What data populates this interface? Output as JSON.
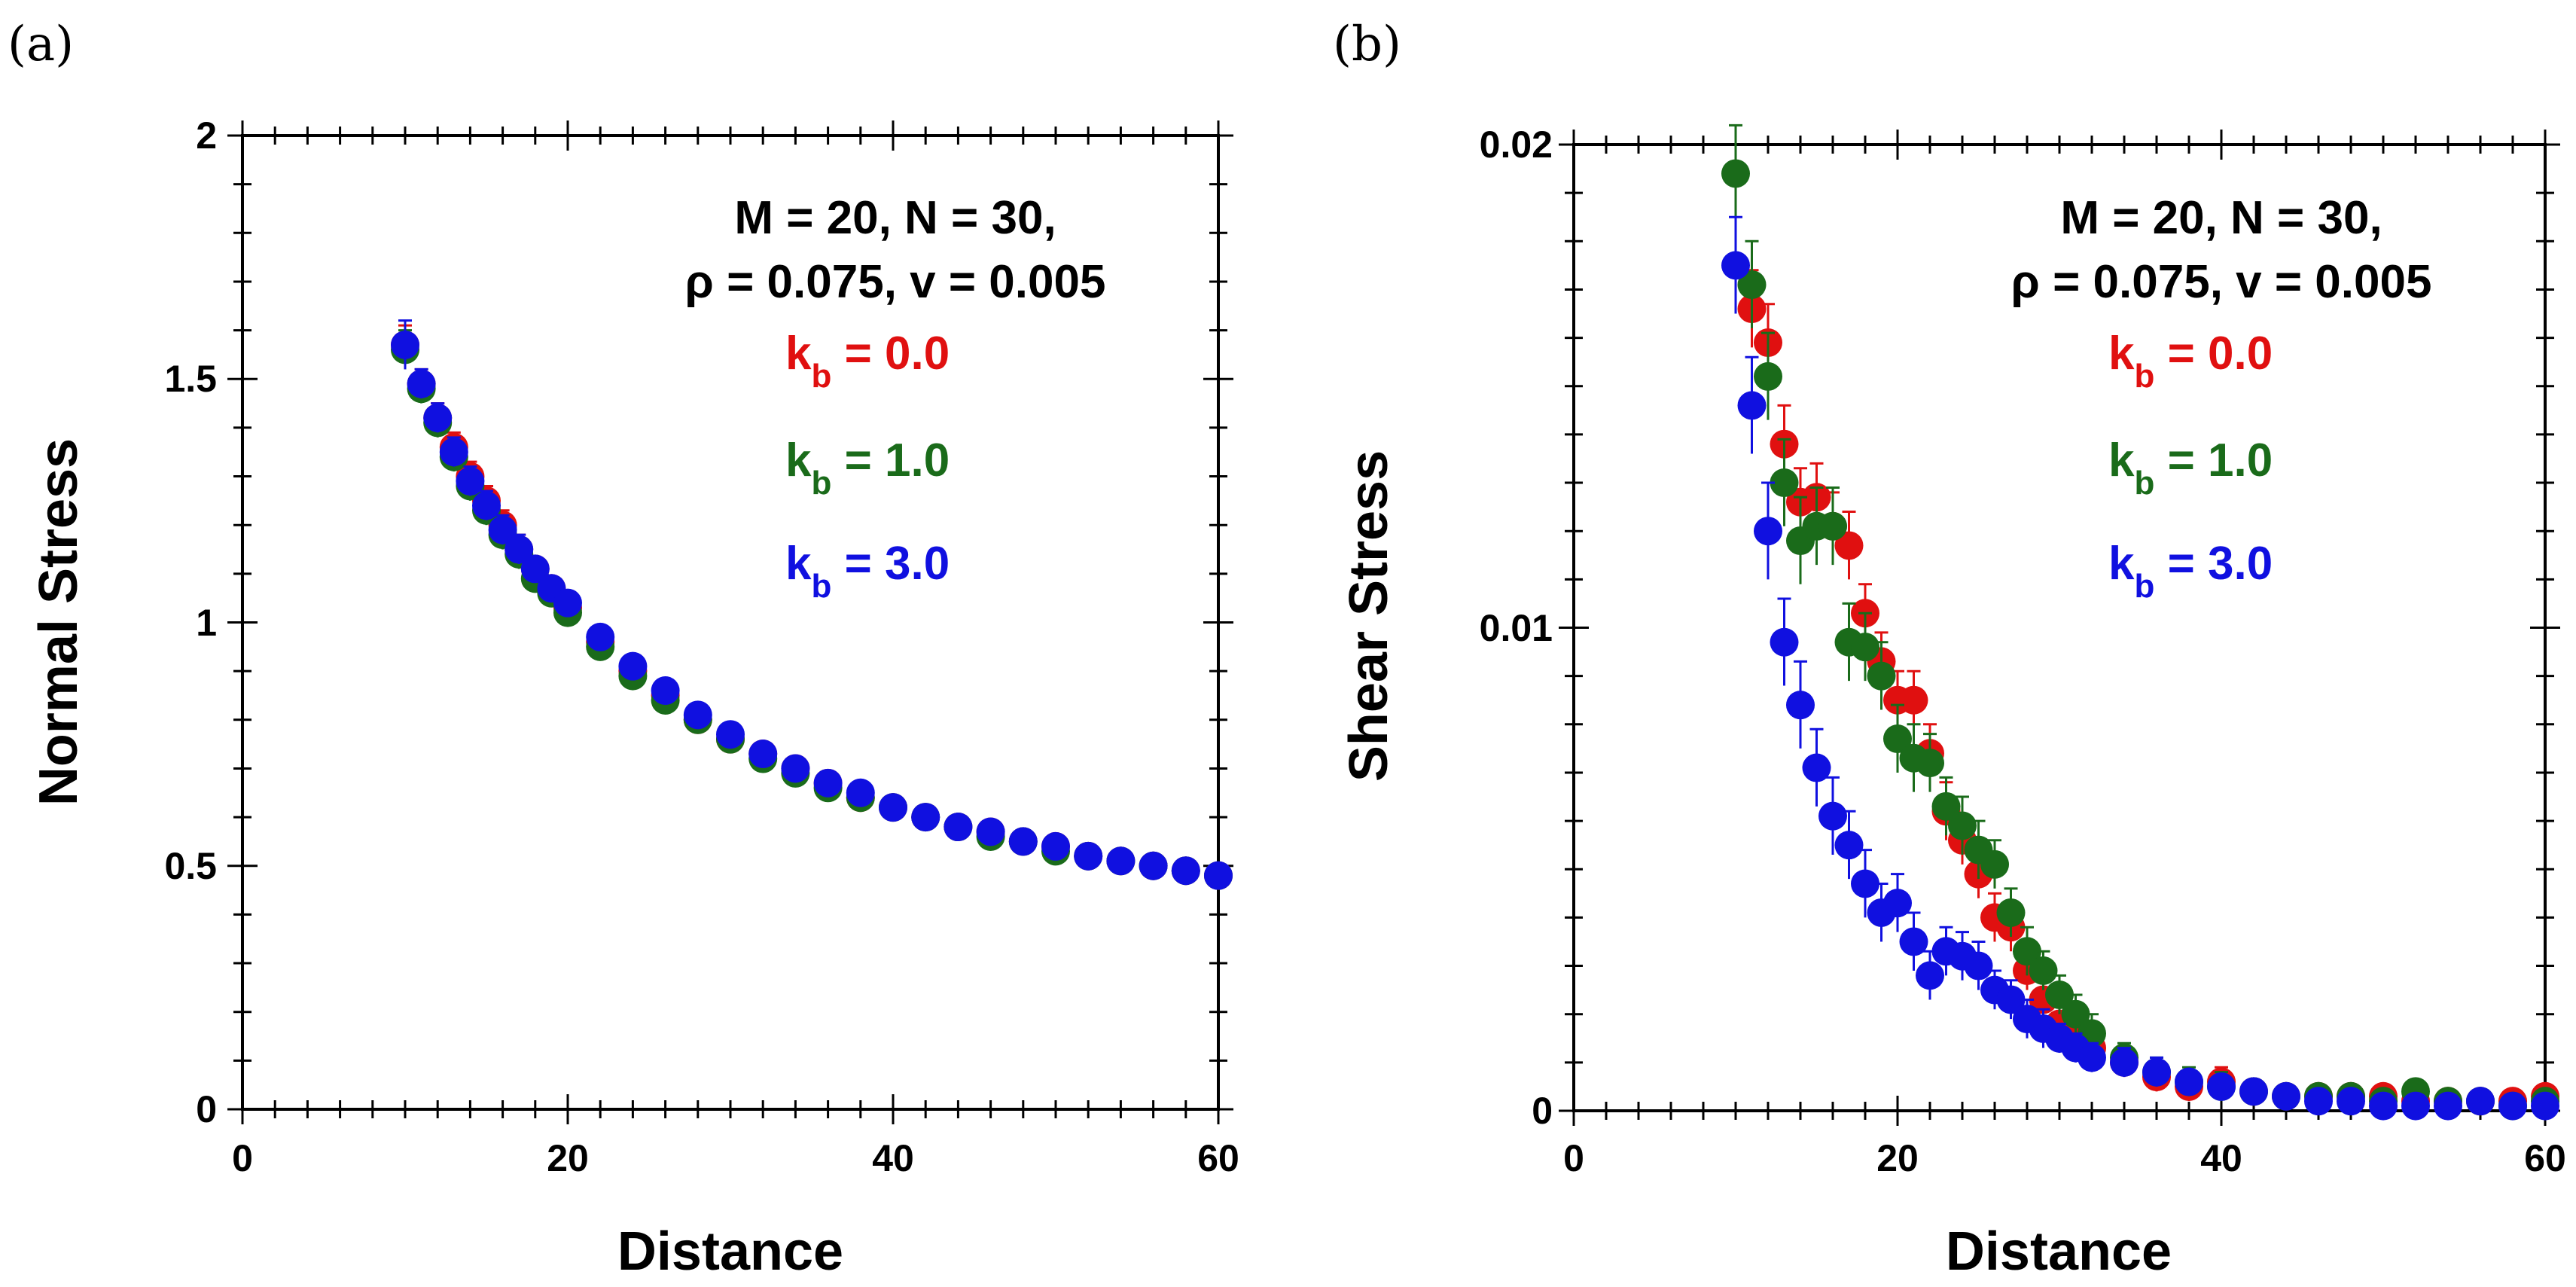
{
  "panels": {
    "a": {
      "label": "(a)",
      "xlabel": "Distance",
      "ylabel": "Normal Stress",
      "xticks": [
        "0",
        "20",
        "40",
        "60"
      ],
      "yticks": [
        "0",
        "0.5",
        "1",
        "1.5",
        "2"
      ],
      "annotation_line1": "M = 20, N = 30,",
      "annotation_line2": "ρ = 0.075, v = 0.005",
      "legend": [
        {
          "k": "k",
          "sub": "b",
          "text": " = 0.0",
          "color": "#e01010"
        },
        {
          "k": "k",
          "sub": "b",
          "text": " = 1.0",
          "color": "#1a6b1a"
        },
        {
          "k": "k",
          "sub": "b",
          "text": " = 3.0",
          "color": "#1010e0"
        }
      ]
    },
    "b": {
      "label": "(b)",
      "xlabel": "Distance",
      "ylabel": "Shear Stress",
      "xticks": [
        "0",
        "20",
        "40",
        "60"
      ],
      "yticks": [
        "0",
        "0.01",
        "0.02"
      ],
      "annotation_line1": "M = 20, N = 30,",
      "annotation_line2": "ρ = 0.075, v = 0.005",
      "legend": [
        {
          "k": "k",
          "sub": "b",
          "text": " = 0.0",
          "color": "#e01010"
        },
        {
          "k": "k",
          "sub": "b",
          "text": " = 1.0",
          "color": "#1a6b1a"
        },
        {
          "k": "k",
          "sub": "b",
          "text": " = 3.0",
          "color": "#1010e0"
        }
      ]
    }
  },
  "chart_data": [
    {
      "type": "scatter",
      "title": "",
      "xlabel": "Distance",
      "ylabel": "Normal Stress",
      "xlim": [
        0,
        60
      ],
      "ylim": [
        0,
        2
      ],
      "error_bars": true,
      "series": [
        {
          "name": "k_b = 0.0",
          "color": "#e01010",
          "x": [
            10,
            11,
            12,
            13,
            14,
            15,
            16,
            17,
            18,
            19,
            20,
            22,
            24,
            26,
            28,
            30,
            32,
            34,
            36,
            38,
            40,
            42,
            44,
            46,
            48,
            50,
            52,
            54,
            56,
            58,
            60
          ],
          "y": [
            1.57,
            1.49,
            1.42,
            1.36,
            1.3,
            1.25,
            1.2,
            1.15,
            1.11,
            1.07,
            1.03,
            0.96,
            0.9,
            0.85,
            0.8,
            0.76,
            0.73,
            0.7,
            0.67,
            0.64,
            0.62,
            0.6,
            0.58,
            0.57,
            0.55,
            0.54,
            0.52,
            0.51,
            0.5,
            0.49,
            0.48
          ],
          "err": [
            0.04,
            0.03,
            0.03,
            0.03,
            0.03,
            0.03,
            0.03,
            0.03,
            0.02,
            0.02,
            0.02,
            0.02,
            0.02,
            0.02,
            0.02,
            0.02,
            0.02,
            0.02,
            0.02,
            0.02,
            0.02,
            0.02,
            0.02,
            0.02,
            0.02,
            0.02,
            0.02,
            0.02,
            0.02,
            0.02,
            0.02
          ]
        },
        {
          "name": "k_b = 1.0",
          "color": "#1a6b1a",
          "x": [
            10,
            11,
            12,
            13,
            14,
            15,
            16,
            17,
            18,
            19,
            20,
            22,
            24,
            26,
            28,
            30,
            32,
            34,
            36,
            38,
            40,
            42,
            44,
            46,
            48,
            50,
            52,
            54,
            56,
            58,
            60
          ],
          "y": [
            1.56,
            1.48,
            1.41,
            1.34,
            1.28,
            1.23,
            1.18,
            1.14,
            1.09,
            1.06,
            1.02,
            0.95,
            0.89,
            0.84,
            0.8,
            0.76,
            0.72,
            0.69,
            0.66,
            0.64,
            0.62,
            0.6,
            0.58,
            0.56,
            0.55,
            0.53,
            0.52,
            0.51,
            0.5,
            0.49,
            0.48
          ],
          "err": [
            0.04,
            0.03,
            0.03,
            0.03,
            0.03,
            0.03,
            0.03,
            0.03,
            0.02,
            0.02,
            0.02,
            0.02,
            0.02,
            0.02,
            0.02,
            0.02,
            0.02,
            0.02,
            0.02,
            0.02,
            0.02,
            0.02,
            0.02,
            0.02,
            0.02,
            0.02,
            0.02,
            0.02,
            0.02,
            0.02,
            0.02
          ]
        },
        {
          "name": "k_b = 3.0",
          "color": "#1010e0",
          "x": [
            10,
            11,
            12,
            13,
            14,
            15,
            16,
            17,
            18,
            19,
            20,
            22,
            24,
            26,
            28,
            30,
            32,
            34,
            36,
            38,
            40,
            42,
            44,
            46,
            48,
            50,
            52,
            54,
            56,
            58,
            60
          ],
          "y": [
            1.57,
            1.49,
            1.42,
            1.35,
            1.29,
            1.24,
            1.19,
            1.15,
            1.11,
            1.07,
            1.04,
            0.97,
            0.91,
            0.86,
            0.81,
            0.77,
            0.73,
            0.7,
            0.67,
            0.65,
            0.62,
            0.6,
            0.58,
            0.57,
            0.55,
            0.54,
            0.52,
            0.51,
            0.5,
            0.49,
            0.48
          ],
          "err": [
            0.05,
            0.03,
            0.03,
            0.03,
            0.03,
            0.03,
            0.03,
            0.03,
            0.02,
            0.02,
            0.02,
            0.02,
            0.02,
            0.02,
            0.02,
            0.02,
            0.02,
            0.02,
            0.02,
            0.02,
            0.02,
            0.02,
            0.02,
            0.02,
            0.02,
            0.02,
            0.02,
            0.02,
            0.02,
            0.02,
            0.02
          ]
        }
      ]
    },
    {
      "type": "scatter",
      "title": "",
      "xlabel": "Distance",
      "ylabel": "Shear Stress",
      "xlim": [
        0,
        60
      ],
      "ylim": [
        0,
        0.02
      ],
      "error_bars": true,
      "series": [
        {
          "name": "k_b = 0.0",
          "color": "#e01010",
          "x": [
            11,
            12,
            13,
            14,
            15,
            16,
            17,
            18,
            19,
            20,
            21,
            22,
            23,
            24,
            25,
            26,
            27,
            28,
            29,
            30,
            31,
            32,
            34,
            36,
            38,
            40,
            42,
            44,
            46,
            48,
            50,
            52,
            54,
            56,
            58,
            60
          ],
          "y": [
            0.0166,
            0.0159,
            0.0138,
            0.0126,
            0.0127,
            0.0121,
            0.0117,
            0.0103,
            0.0093,
            0.0085,
            0.0085,
            0.0074,
            0.0062,
            0.0056,
            0.0049,
            0.004,
            0.0038,
            0.0029,
            0.0023,
            0.0018,
            0.0016,
            0.0013,
            0.001,
            0.0007,
            0.0005,
            0.0006,
            0.0004,
            0.0003,
            0.0003,
            0.0003,
            0.0003,
            0.0002,
            0.0002,
            0.0002,
            0.0002,
            0.0003
          ],
          "err": [
            0.0008,
            0.0008,
            0.0008,
            0.0007,
            0.0007,
            0.0007,
            0.0007,
            0.0006,
            0.0006,
            0.0006,
            0.0006,
            0.0006,
            0.0006,
            0.0005,
            0.0005,
            0.0005,
            0.0005,
            0.0004,
            0.0004,
            0.0004,
            0.0004,
            0.0003,
            0.0003,
            0.0003,
            0.0003,
            0.0003,
            0.0002,
            0.0002,
            0.0002,
            0.0002,
            0.0002,
            0.0002,
            0.0002,
            0.0002,
            0.0002,
            0.0002
          ]
        },
        {
          "name": "k_b = 1.0",
          "color": "#1a6b1a",
          "x": [
            10,
            11,
            12,
            13,
            14,
            15,
            16,
            17,
            18,
            19,
            20,
            21,
            22,
            23,
            24,
            25,
            26,
            27,
            28,
            29,
            30,
            31,
            32,
            34,
            36,
            38,
            40,
            42,
            44,
            46,
            48,
            50,
            52,
            54,
            56,
            58,
            60
          ],
          "y": [
            0.0194,
            0.0171,
            0.0152,
            0.013,
            0.0118,
            0.0121,
            0.0121,
            0.0097,
            0.0096,
            0.009,
            0.0077,
            0.0073,
            0.0072,
            0.0063,
            0.0059,
            0.0054,
            0.0051,
            0.0041,
            0.0033,
            0.0029,
            0.0024,
            0.002,
            0.0016,
            0.0011,
            0.0008,
            0.0006,
            0.0005,
            0.0004,
            0.0003,
            0.0003,
            0.0003,
            0.0002,
            0.0004,
            0.0002,
            0.0002,
            0.0001,
            0.0002
          ],
          "err": [
            0.001,
            0.0009,
            0.0009,
            0.0009,
            0.0009,
            0.0008,
            0.0008,
            0.0008,
            0.0007,
            0.0007,
            0.0007,
            0.0007,
            0.0006,
            0.0006,
            0.0006,
            0.0006,
            0.0005,
            0.0005,
            0.0005,
            0.0004,
            0.0004,
            0.0004,
            0.0004,
            0.0003,
            0.0003,
            0.0003,
            0.0003,
            0.0002,
            0.0002,
            0.0002,
            0.0002,
            0.0002,
            0.0002,
            0.0002,
            0.0002,
            0.0002,
            0.0002
          ]
        },
        {
          "name": "k_b = 3.0",
          "color": "#1010e0",
          "x": [
            10,
            11,
            12,
            13,
            14,
            15,
            16,
            17,
            18,
            19,
            20,
            21,
            22,
            23,
            24,
            25,
            26,
            27,
            28,
            29,
            30,
            31,
            32,
            34,
            36,
            38,
            40,
            42,
            44,
            46,
            48,
            50,
            52,
            54,
            56,
            58,
            60
          ],
          "y": [
            0.0175,
            0.0146,
            0.012,
            0.0097,
            0.0084,
            0.0071,
            0.0061,
            0.0055,
            0.0047,
            0.0041,
            0.0043,
            0.0035,
            0.0028,
            0.0033,
            0.0032,
            0.003,
            0.0025,
            0.0023,
            0.0019,
            0.0017,
            0.0015,
            0.0013,
            0.0011,
            0.001,
            0.0008,
            0.0006,
            0.0005,
            0.0004,
            0.0003,
            0.0002,
            0.0002,
            0.0001,
            0.0001,
            0.0001,
            0.0002,
            0.0001,
            0.0001
          ],
          "err": [
            0.001,
            0.001,
            0.001,
            0.0009,
            0.0009,
            0.0008,
            0.0008,
            0.0007,
            0.0007,
            0.0006,
            0.0006,
            0.0006,
            0.0005,
            0.0005,
            0.0005,
            0.0005,
            0.0004,
            0.0004,
            0.0004,
            0.0004,
            0.0003,
            0.0003,
            0.0003,
            0.0003,
            0.0003,
            0.0002,
            0.0002,
            0.0002,
            0.0002,
            0.0002,
            0.0002,
            0.0002,
            0.0002,
            0.0002,
            0.0002,
            0.0002,
            0.0002
          ]
        }
      ]
    }
  ]
}
